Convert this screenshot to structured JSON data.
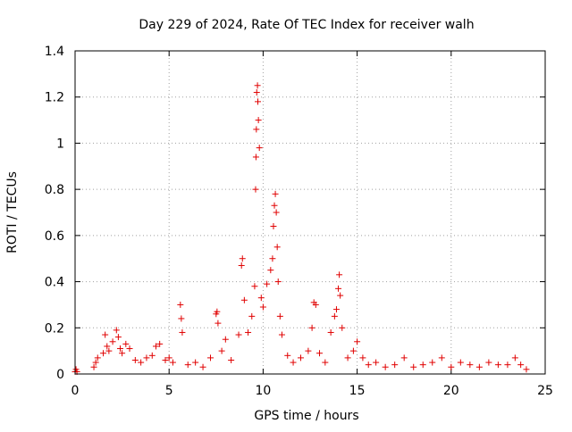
{
  "chart_data": {
    "type": "scatter",
    "title": "Day 229 of 2024, Rate Of TEC Index for receiver walh",
    "xlabel": "GPS time / hours",
    "ylabel": "ROTI / TECUs",
    "xlim": [
      0,
      25
    ],
    "ylim": [
      0,
      1.4
    ],
    "x_ticks": [
      0,
      5,
      10,
      15,
      20,
      25
    ],
    "x_tick_labels": [
      "0",
      "5",
      "10",
      "15",
      "20",
      "25"
    ],
    "y_ticks": [
      0,
      0.2,
      0.4,
      0.6,
      0.8,
      1.0,
      1.2,
      1.4
    ],
    "y_tick_labels": [
      "0",
      "0.2",
      "0.4",
      "0.6",
      "0.8",
      "1",
      "1.2",
      "1.4"
    ],
    "grid": true,
    "marker": "plus",
    "color": "#e00000",
    "series": [
      {
        "x": [
          0.0,
          0.05,
          0.1,
          1.0,
          1.1,
          1.2,
          1.5,
          1.6,
          1.7,
          1.8,
          2.0,
          2.2,
          2.3,
          2.4,
          2.5,
          2.7,
          2.9,
          3.2,
          3.5,
          3.8,
          4.1,
          4.3,
          4.5,
          4.8,
          5.0,
          5.2,
          5.6,
          5.65,
          5.7,
          6.0,
          6.4,
          6.8,
          7.2,
          7.5,
          7.55,
          7.6,
          7.8,
          8.0,
          8.3,
          8.7,
          8.85,
          8.9,
          9.0,
          9.2,
          9.4,
          9.55,
          9.6,
          9.62,
          9.64,
          9.66,
          9.7,
          9.72,
          9.75,
          9.8,
          9.9,
          10.0,
          10.2,
          10.4,
          10.5,
          10.55,
          10.6,
          10.65,
          10.7,
          10.75,
          10.8,
          10.9,
          11.0,
          11.3,
          11.6,
          12.0,
          12.4,
          12.6,
          12.7,
          12.8,
          13.0,
          13.3,
          13.6,
          13.8,
          13.9,
          14.0,
          14.05,
          14.1,
          14.2,
          14.5,
          14.8,
          15.0,
          15.3,
          15.6,
          16.0,
          16.5,
          17.0,
          17.5,
          18.0,
          18.5,
          19.0,
          19.5,
          20.0,
          20.5,
          21.0,
          21.5,
          22.0,
          22.5,
          23.0,
          23.4,
          23.7,
          24.0
        ],
        "y": [
          0.01,
          0.02,
          0.01,
          0.03,
          0.05,
          0.07,
          0.09,
          0.17,
          0.12,
          0.1,
          0.14,
          0.19,
          0.16,
          0.11,
          0.09,
          0.13,
          0.11,
          0.06,
          0.05,
          0.07,
          0.08,
          0.12,
          0.13,
          0.06,
          0.07,
          0.05,
          0.3,
          0.24,
          0.18,
          0.04,
          0.05,
          0.03,
          0.07,
          0.26,
          0.27,
          0.22,
          0.1,
          0.15,
          0.06,
          0.17,
          0.47,
          0.5,
          0.32,
          0.18,
          0.25,
          0.38,
          0.8,
          0.94,
          1.06,
          1.22,
          1.25,
          1.18,
          1.1,
          0.98,
          0.33,
          0.29,
          0.39,
          0.45,
          0.5,
          0.64,
          0.73,
          0.78,
          0.7,
          0.55,
          0.4,
          0.25,
          0.17,
          0.08,
          0.05,
          0.07,
          0.1,
          0.2,
          0.31,
          0.3,
          0.09,
          0.05,
          0.18,
          0.25,
          0.28,
          0.37,
          0.43,
          0.34,
          0.2,
          0.07,
          0.1,
          0.14,
          0.07,
          0.04,
          0.05,
          0.03,
          0.04,
          0.07,
          0.03,
          0.04,
          0.05,
          0.07,
          0.03,
          0.05,
          0.04,
          0.03,
          0.05,
          0.04,
          0.04,
          0.07,
          0.04,
          0.02
        ]
      }
    ]
  }
}
